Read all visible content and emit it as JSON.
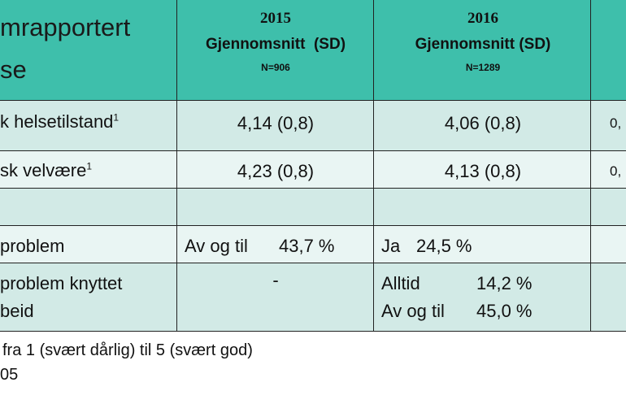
{
  "table": {
    "header": {
      "lines": [
        "mrapportert",
        "se"
      ]
    },
    "columns": [
      {
        "year": "2015",
        "label": "Gjennomsnitt  (SD)",
        "n": "N=906"
      },
      {
        "year": "2016",
        "label": "Gjennomsnitt (SD)",
        "n": "N=1289"
      }
    ],
    "rows": [
      {
        "label": "k helsetilstand",
        "note": "1",
        "v2015": "4,14 (0,8)",
        "v2016": "4,06 (0,8)",
        "next": "0,"
      },
      {
        "label": "sk velvære",
        "note": "1",
        "v2015": "4,23 (0,8)",
        "v2016": "4,13 (0,8)",
        "next": "0,"
      },
      {},
      {
        "label": "problem",
        "v2015": [
          "Av og til",
          "43,7 %"
        ],
        "v2016": [
          "Ja",
          "24,5 %"
        ]
      },
      {
        "label": [
          "problem knyttet",
          "beid"
        ],
        "v2015": "-",
        "v2016": [
          [
            "Alltid",
            "14,2 %"
          ],
          [
            "Av og til",
            "45,0 %"
          ]
        ]
      }
    ]
  },
  "footnotes": [
    "fra 1 (svært dårlig) til 5 (svært god)",
    "05"
  ]
}
